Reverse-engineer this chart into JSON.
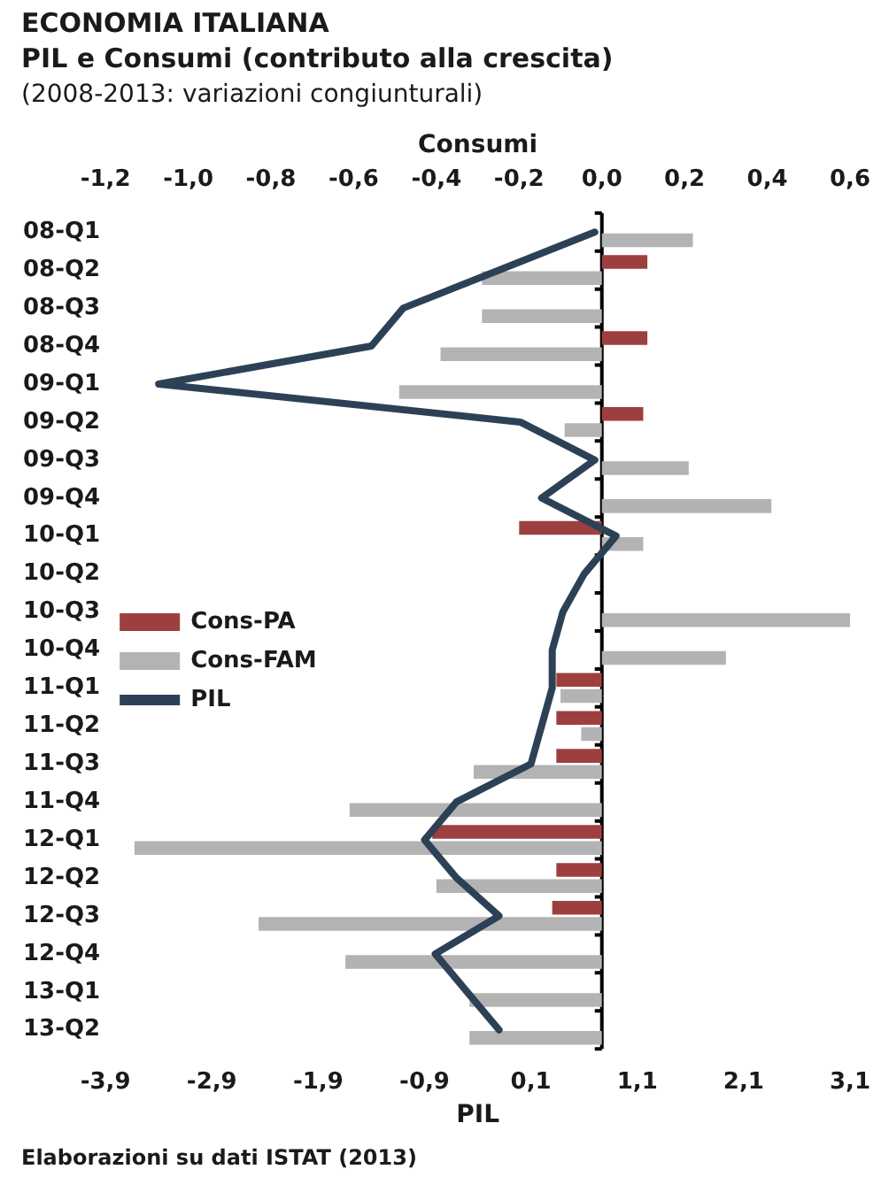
{
  "chart_data": {
    "type": "bar",
    "orientation": "horizontal",
    "title": "ECONOMIA ITALIANA\nPIL e Consumi (contributo alla crescita)",
    "subtitle": "(2008-2013: variazioni congiunturali)",
    "x2label": "Consumi",
    "xlabel": "PIL",
    "annotations": [
      "Elaborazioni su dati ISTAT (2013)"
    ],
    "categories": [
      "08-Q1",
      "08-Q2",
      "08-Q3",
      "08-Q4",
      "09-Q1",
      "09-Q2",
      "09-Q3",
      "09-Q4",
      "10-Q1",
      "10-Q2",
      "10-Q3",
      "10-Q4",
      "11-Q1",
      "11-Q2",
      "11-Q3",
      "11-Q4",
      "12-Q1",
      "12-Q2",
      "12-Q3",
      "12-Q4",
      "13-Q1",
      "13-Q2"
    ],
    "series": [
      {
        "name": "Cons-PA",
        "axis": "x2",
        "color": "#9e3f3f",
        "values": [
          0,
          0.11,
          0,
          0.11,
          0,
          0.1,
          0,
          0,
          -0.2,
          0,
          0,
          0,
          -0.11,
          -0.11,
          -0.11,
          0,
          -0.41,
          -0.11,
          -0.12,
          0,
          0,
          0
        ]
      },
      {
        "name": "Cons-FAM",
        "axis": "x2",
        "color": "#b3b3b3",
        "values": [
          0.22,
          -0.29,
          -0.29,
          -0.39,
          -0.49,
          -0.09,
          0.21,
          0.41,
          0.1,
          0,
          0.6,
          0.3,
          -0.1,
          -0.05,
          -0.31,
          -0.61,
          -1.13,
          -0.4,
          -0.83,
          -0.62,
          -0.32,
          -0.32
        ]
      },
      {
        "name": "PIL",
        "type": "line",
        "color": "#2d4156",
        "values": [
          0.7,
          -0.2,
          -1.1,
          -1.4,
          -3.4,
          0,
          0.7,
          0.2,
          0.9,
          0.6,
          0.4,
          0.3,
          0.3,
          0.2,
          0.1,
          -0.6,
          -0.9,
          -0.6,
          -0.2,
          -0.8,
          -0.5,
          -0.2
        ]
      }
    ],
    "x2lim": [
      -1.2,
      0.6
    ],
    "x2ticks": [
      {
        "value": -1.2,
        "label": "-1,2"
      },
      {
        "value": -1,
        "label": "-1,0"
      },
      {
        "value": -0.8,
        "label": "-0,8"
      },
      {
        "value": -0.6,
        "label": "-0,6"
      },
      {
        "value": -0.4,
        "label": "-0,4"
      },
      {
        "value": -0.2,
        "label": "-0,2"
      },
      {
        "value": 0,
        "label": "0,0"
      },
      {
        "value": 0.2,
        "label": "0,2"
      },
      {
        "value": 0.4,
        "label": "0,4"
      },
      {
        "value": 0.6,
        "label": "0,6"
      }
    ],
    "xlim": [
      -3.9,
      3.1
    ],
    "xticks": [
      {
        "value": -3.9,
        "label": "-3,9"
      },
      {
        "value": -2.9,
        "label": "-2,9"
      },
      {
        "value": -1.9,
        "label": "-1,9"
      },
      {
        "value": -0.9,
        "label": "-0,9"
      },
      {
        "value": 0.1,
        "label": "0,1"
      },
      {
        "value": 1.1,
        "label": "1,1"
      },
      {
        "value": 2.1,
        "label": "2,1"
      },
      {
        "value": 3.1,
        "label": "3,1"
      }
    ],
    "ref_lines": [
      {
        "axis": "x2",
        "value": 0,
        "color": "#000000"
      }
    ],
    "legend": "left",
    "marker": "none",
    "line_style": "solid"
  }
}
